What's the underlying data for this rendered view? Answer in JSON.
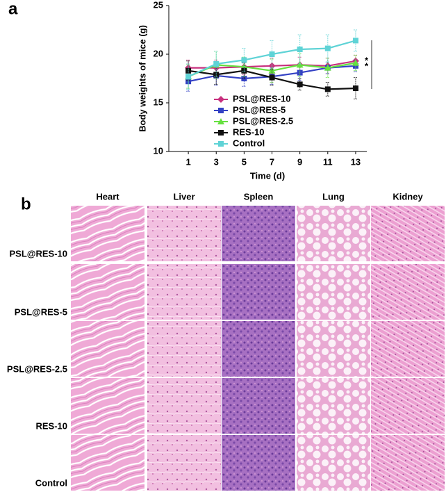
{
  "panel_a": {
    "label": "a"
  },
  "chart_data": {
    "type": "line",
    "x_label": "Time (d)",
    "y_label": "Body weights of mice (g)",
    "x": [
      1,
      3,
      5,
      7,
      9,
      11,
      13
    ],
    "xlim": [
      -0.4,
      13.8
    ],
    "xticks": [
      1,
      3,
      5,
      7,
      9,
      11,
      13
    ],
    "ylim": [
      10,
      25
    ],
    "yticks": [
      10,
      15,
      20,
      25
    ],
    "grid": false,
    "legend": "lower left",
    "annotations": [
      "*",
      "*"
    ],
    "series": [
      {
        "name": "PSL@RES-10",
        "color": "#c8307e",
        "marker": "diamond",
        "values": [
          18.6,
          18.6,
          18.7,
          18.8,
          18.9,
          18.8,
          19.3
        ],
        "errors": [
          0.8,
          0.8,
          0.8,
          0.8,
          0.8,
          0.8,
          0.6
        ]
      },
      {
        "name": "PSL@RES-5",
        "color": "#3341c4",
        "marker": "square",
        "values": [
          17.2,
          17.8,
          17.5,
          17.7,
          18.1,
          18.6,
          18.8
        ],
        "errors": [
          1.0,
          1.0,
          0.8,
          0.8,
          0.8,
          0.6,
          0.6
        ]
      },
      {
        "name": "PSL@RES-2.5",
        "color": "#66e040",
        "marker": "triangle",
        "values": [
          17.7,
          18.9,
          18.7,
          18.3,
          18.9,
          18.6,
          19.1
        ],
        "errors": [
          1.2,
          1.4,
          1.0,
          1.2,
          1.2,
          1.0,
          0.8
        ]
      },
      {
        "name": "RES-10",
        "color": "#111111",
        "marker": "square",
        "values": [
          18.3,
          17.9,
          18.3,
          17.6,
          16.9,
          16.4,
          16.5
        ],
        "errors": [
          1.0,
          1.0,
          0.8,
          0.8,
          0.6,
          0.7,
          1.1
        ]
      },
      {
        "name": "Control",
        "color": "#5fd3d6",
        "marker": "square",
        "values": [
          17.7,
          19.0,
          19.4,
          20.0,
          20.5,
          20.6,
          21.4
        ],
        "errors": [
          1.3,
          1.3,
          1.2,
          1.4,
          1.5,
          1.4,
          1.1
        ]
      }
    ]
  },
  "panel_b": {
    "label": "b",
    "columns": [
      "Heart",
      "Liver",
      "Spleen",
      "Lung",
      "Kidney"
    ],
    "rows": [
      "PSL@RES-10",
      "PSL@RES-5",
      "PSL@RES-2.5",
      "RES-10",
      "Control"
    ]
  }
}
